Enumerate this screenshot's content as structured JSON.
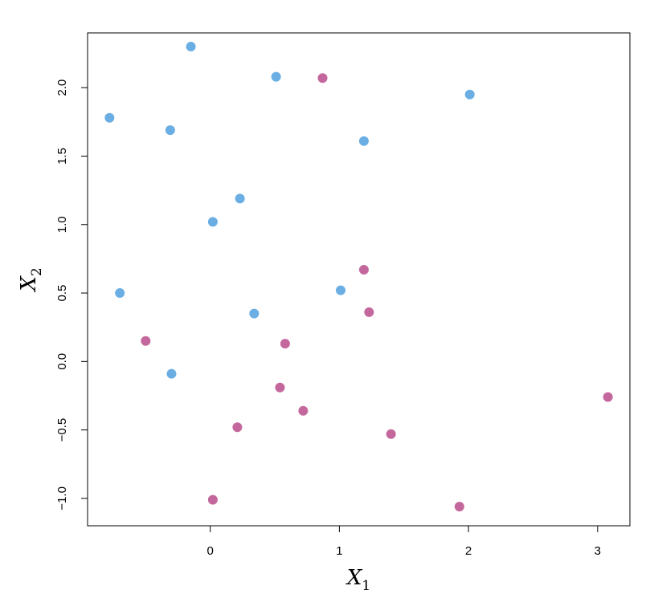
{
  "chart_data": {
    "type": "scatter",
    "title": "",
    "xlabel": {
      "main": "X",
      "sub": "1"
    },
    "ylabel": {
      "main": "X",
      "sub": "2"
    },
    "xlim": [
      -0.95,
      3.25
    ],
    "ylim": [
      -1.2,
      2.4
    ],
    "x_ticks": [
      0,
      1,
      2,
      3
    ],
    "x_tick_labels": [
      "0",
      "1",
      "2",
      "3"
    ],
    "y_ticks": [
      -1.0,
      -0.5,
      0.0,
      0.5,
      1.0,
      1.5,
      2.0
    ],
    "y_tick_labels": [
      "−1.0",
      "−0.5",
      "0.0",
      "0.5",
      "1.0",
      "1.5",
      "2.0"
    ],
    "grid": false,
    "series": [
      {
        "color": "#6aaee3",
        "points": [
          [
            -0.78,
            1.78
          ],
          [
            -0.15,
            2.3
          ],
          [
            0.51,
            2.08
          ],
          [
            2.01,
            1.95
          ],
          [
            -0.31,
            1.69
          ],
          [
            1.19,
            1.61
          ],
          [
            0.23,
            1.19
          ],
          [
            0.02,
            1.02
          ],
          [
            -0.7,
            0.5
          ],
          [
            1.01,
            0.52
          ],
          [
            0.34,
            0.35
          ],
          [
            -0.3,
            -0.09
          ]
        ]
      },
      {
        "color": "#c4679d",
        "points": [
          [
            0.87,
            2.07
          ],
          [
            1.19,
            0.67
          ],
          [
            1.23,
            0.36
          ],
          [
            -0.5,
            0.15
          ],
          [
            0.58,
            0.13
          ],
          [
            0.54,
            -0.19
          ],
          [
            0.72,
            -0.36
          ],
          [
            0.21,
            -0.48
          ],
          [
            1.4,
            -0.53
          ],
          [
            3.08,
            -0.26
          ],
          [
            0.02,
            -1.01
          ],
          [
            1.93,
            -1.06
          ]
        ]
      }
    ]
  }
}
